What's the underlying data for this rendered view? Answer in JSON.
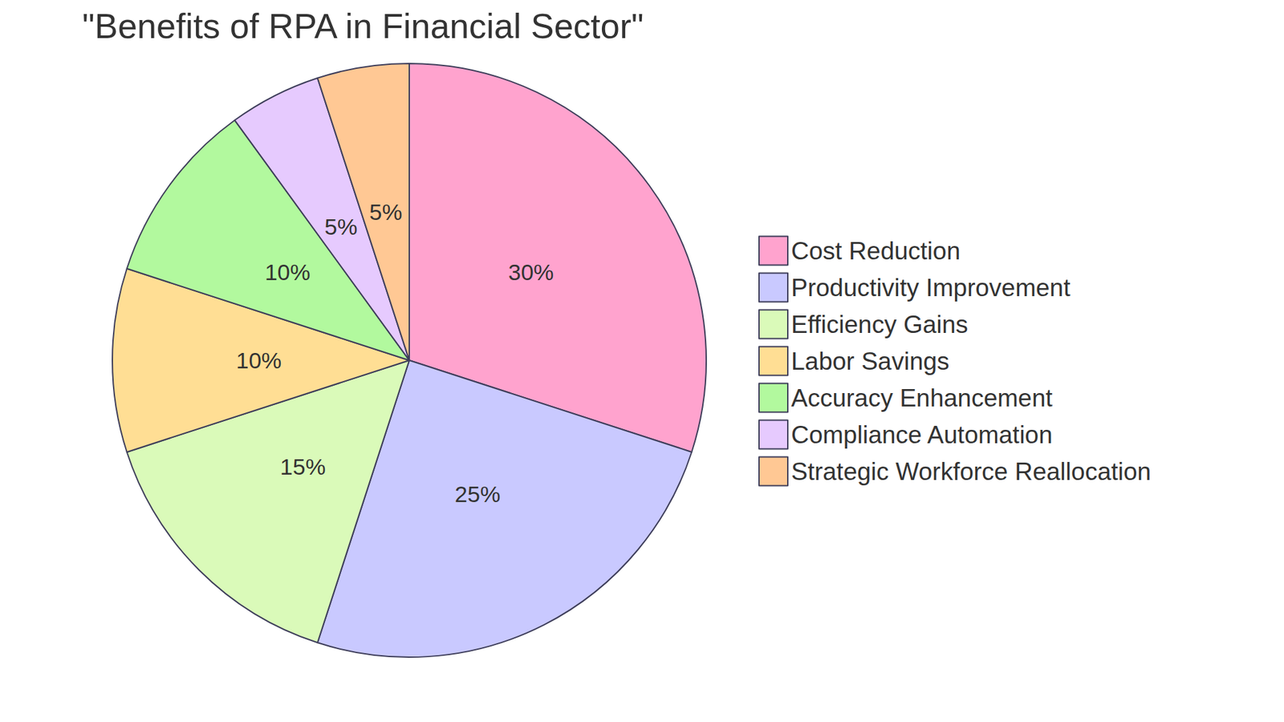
{
  "chart_data": {
    "type": "pie",
    "title": "\"Benefits of RPA in Financial Sector\"",
    "categories": [
      "Cost Reduction",
      "Productivity Improvement",
      "Efficiency Gains",
      "Labor Savings",
      "Accuracy Enhancement",
      "Compliance Automation",
      "Strategic Workforce Reallocation"
    ],
    "values": [
      30,
      25,
      15,
      10,
      10,
      5,
      5
    ],
    "value_labels": [
      "30%",
      "25%",
      "15%",
      "10%",
      "10%",
      "5%",
      "5%"
    ],
    "colors": [
      "#ffa3ce",
      "#c9c9ff",
      "#dafab9",
      "#ffde94",
      "#b2f99e",
      "#e6cafe",
      "#ffc894"
    ],
    "data_labels": true,
    "legend": "right"
  }
}
